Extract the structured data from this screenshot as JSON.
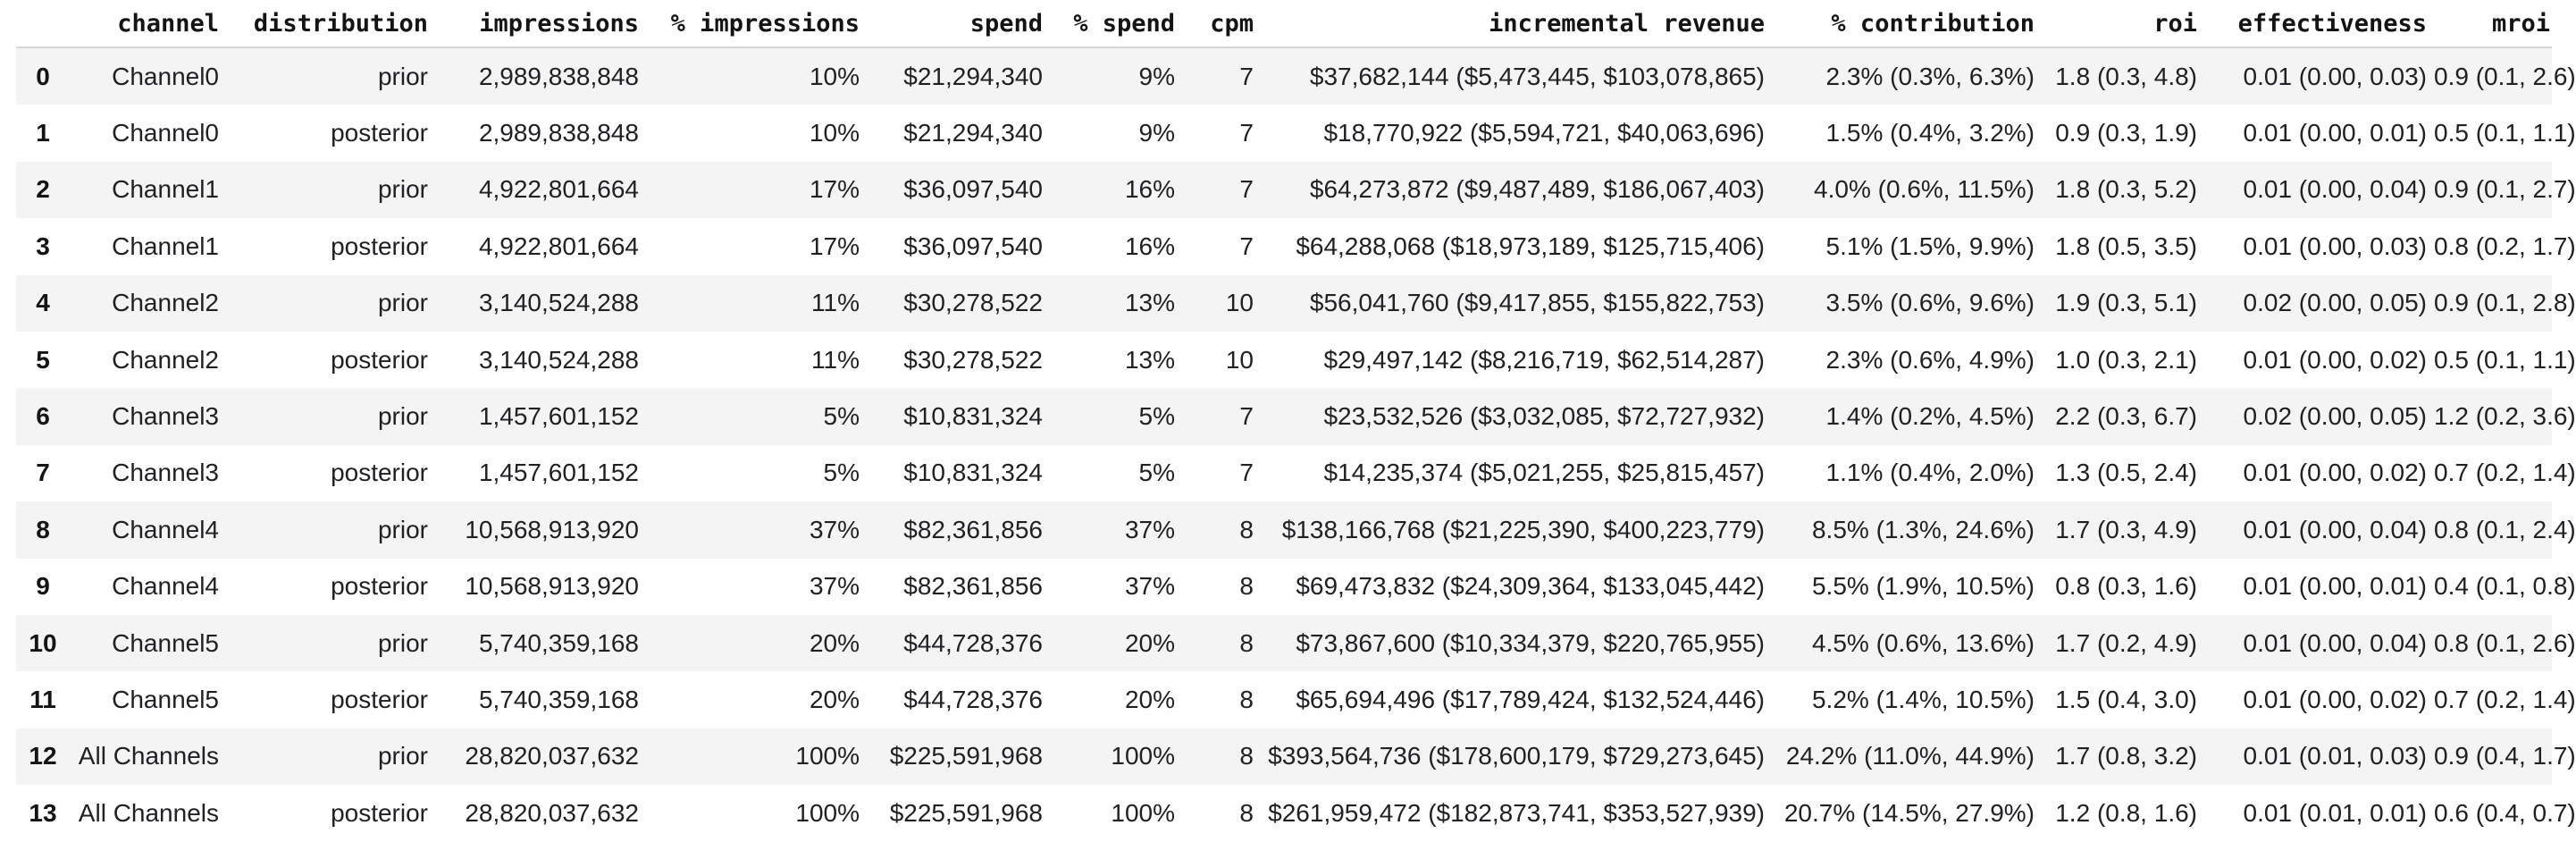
{
  "table": {
    "index_header": "",
    "columns": [
      "channel",
      "distribution",
      "impressions",
      "% impressions",
      "spend",
      "% spend",
      "cpm",
      "incremental revenue",
      "% contribution",
      "roi",
      "effectiveness",
      "mroi"
    ],
    "column_keys": [
      "channel",
      "distribution",
      "impressions",
      "pct-impressions",
      "spend",
      "pct-spend",
      "cpm",
      "incremental-revenue",
      "pct-contribution",
      "roi",
      "effectiveness",
      "mroi"
    ],
    "rows": [
      [
        "0",
        "Channel0",
        "prior",
        "2,989,838,848",
        "10%",
        "$21,294,340",
        "9%",
        "7",
        "$37,682,144 ($5,473,445, $103,078,865)",
        "2.3% (0.3%, 6.3%)",
        "1.8 (0.3, 4.8)",
        "0.01 (0.00, 0.03)",
        "0.9 (0.1, 2.6)"
      ],
      [
        "1",
        "Channel0",
        "posterior",
        "2,989,838,848",
        "10%",
        "$21,294,340",
        "9%",
        "7",
        "$18,770,922 ($5,594,721, $40,063,696)",
        "1.5% (0.4%, 3.2%)",
        "0.9 (0.3, 1.9)",
        "0.01 (0.00, 0.01)",
        "0.5 (0.1, 1.1)"
      ],
      [
        "2",
        "Channel1",
        "prior",
        "4,922,801,664",
        "17%",
        "$36,097,540",
        "16%",
        "7",
        "$64,273,872 ($9,487,489, $186,067,403)",
        "4.0% (0.6%, 11.5%)",
        "1.8 (0.3, 5.2)",
        "0.01 (0.00, 0.04)",
        "0.9 (0.1, 2.7)"
      ],
      [
        "3",
        "Channel1",
        "posterior",
        "4,922,801,664",
        "17%",
        "$36,097,540",
        "16%",
        "7",
        "$64,288,068 ($18,973,189, $125,715,406)",
        "5.1% (1.5%, 9.9%)",
        "1.8 (0.5, 3.5)",
        "0.01 (0.00, 0.03)",
        "0.8 (0.2, 1.7)"
      ],
      [
        "4",
        "Channel2",
        "prior",
        "3,140,524,288",
        "11%",
        "$30,278,522",
        "13%",
        "10",
        "$56,041,760 ($9,417,855, $155,822,753)",
        "3.5% (0.6%, 9.6%)",
        "1.9 (0.3, 5.1)",
        "0.02 (0.00, 0.05)",
        "0.9 (0.1, 2.8)"
      ],
      [
        "5",
        "Channel2",
        "posterior",
        "3,140,524,288",
        "11%",
        "$30,278,522",
        "13%",
        "10",
        "$29,497,142 ($8,216,719, $62,514,287)",
        "2.3% (0.6%, 4.9%)",
        "1.0 (0.3, 2.1)",
        "0.01 (0.00, 0.02)",
        "0.5 (0.1, 1.1)"
      ],
      [
        "6",
        "Channel3",
        "prior",
        "1,457,601,152",
        "5%",
        "$10,831,324",
        "5%",
        "7",
        "$23,532,526 ($3,032,085, $72,727,932)",
        "1.4% (0.2%, 4.5%)",
        "2.2 (0.3, 6.7)",
        "0.02 (0.00, 0.05)",
        "1.2 (0.2, 3.6)"
      ],
      [
        "7",
        "Channel3",
        "posterior",
        "1,457,601,152",
        "5%",
        "$10,831,324",
        "5%",
        "7",
        "$14,235,374 ($5,021,255, $25,815,457)",
        "1.1% (0.4%, 2.0%)",
        "1.3 (0.5, 2.4)",
        "0.01 (0.00, 0.02)",
        "0.7 (0.2, 1.4)"
      ],
      [
        "8",
        "Channel4",
        "prior",
        "10,568,913,920",
        "37%",
        "$82,361,856",
        "37%",
        "8",
        "$138,166,768 ($21,225,390, $400,223,779)",
        "8.5% (1.3%, 24.6%)",
        "1.7 (0.3, 4.9)",
        "0.01 (0.00, 0.04)",
        "0.8 (0.1, 2.4)"
      ],
      [
        "9",
        "Channel4",
        "posterior",
        "10,568,913,920",
        "37%",
        "$82,361,856",
        "37%",
        "8",
        "$69,473,832 ($24,309,364, $133,045,442)",
        "5.5% (1.9%, 10.5%)",
        "0.8 (0.3, 1.6)",
        "0.01 (0.00, 0.01)",
        "0.4 (0.1, 0.8)"
      ],
      [
        "10",
        "Channel5",
        "prior",
        "5,740,359,168",
        "20%",
        "$44,728,376",
        "20%",
        "8",
        "$73,867,600 ($10,334,379, $220,765,955)",
        "4.5% (0.6%, 13.6%)",
        "1.7 (0.2, 4.9)",
        "0.01 (0.00, 0.04)",
        "0.8 (0.1, 2.6)"
      ],
      [
        "11",
        "Channel5",
        "posterior",
        "5,740,359,168",
        "20%",
        "$44,728,376",
        "20%",
        "8",
        "$65,694,496 ($17,789,424, $132,524,446)",
        "5.2% (1.4%, 10.5%)",
        "1.5 (0.4, 3.0)",
        "0.01 (0.00, 0.02)",
        "0.7 (0.2, 1.4)"
      ],
      [
        "12",
        "All Channels",
        "prior",
        "28,820,037,632",
        "100%",
        "$225,591,968",
        "100%",
        "8",
        "$393,564,736 ($178,600,179, $729,273,645)",
        "24.2% (11.0%, 44.9%)",
        "1.7 (0.8, 3.2)",
        "0.01 (0.01, 0.03)",
        "0.9 (0.4, 1.7)"
      ],
      [
        "13",
        "All Channels",
        "posterior",
        "28,820,037,632",
        "100%",
        "$225,591,968",
        "100%",
        "8",
        "$261,959,472 ($182,873,741, $353,527,939)",
        "20.7% (14.5%, 27.9%)",
        "1.2 (0.8, 1.6)",
        "0.01 (0.01, 0.01)",
        "0.6 (0.4, 0.7)"
      ]
    ]
  },
  "colors": {
    "row_stripe": "#f4f4f4",
    "header_border": "#d7d7d7",
    "body_text": "#202124",
    "header_text": "#141414",
    "background": "#ffffff"
  }
}
